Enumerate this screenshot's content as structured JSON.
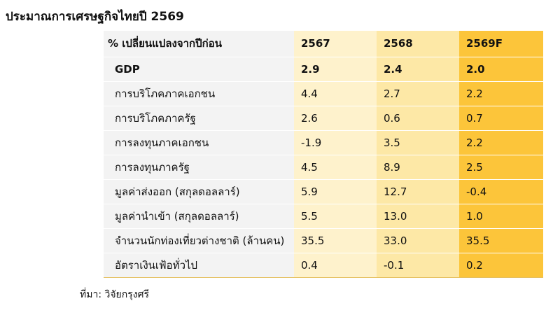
{
  "title": "ประมาณการเศรษฐกิจไทยปี 2569",
  "columns": [
    "% เปลี่ยนแปลงจากปีก่อน",
    "2567",
    "2568",
    "2569F"
  ],
  "rows": [
    {
      "label": "GDP",
      "values": [
        "2.9",
        "2.4",
        "2.0"
      ]
    },
    {
      "label": "การบริโภคภาคเอกชน",
      "values": [
        "4.4",
        "2.7",
        "2.2"
      ]
    },
    {
      "label": "การบริโภคภาครัฐ",
      "values": [
        "2.6",
        "0.6",
        "0.7"
      ]
    },
    {
      "label": "การลงทุนภาคเอกชน",
      "values": [
        "-1.9",
        "3.5",
        "2.2"
      ]
    },
    {
      "label": "การลงทุนภาครัฐ",
      "values": [
        "4.5",
        "8.9",
        "2.5"
      ]
    },
    {
      "label": "มูลค่าส่งออก (สกุลดอลลาร์)",
      "values": [
        "5.9",
        "12.7",
        "-0.4"
      ]
    },
    {
      "label": "มูลค่านำเข้า (สกุลดอลลาร์)",
      "values": [
        "5.5",
        "13.0",
        "1.0"
      ]
    },
    {
      "label": "จำนวนนักท่องเที่ยวต่างชาติ (ล้านคน)",
      "values": [
        "35.5",
        "33.0",
        "35.5"
      ]
    },
    {
      "label": "อัตราเงินเฟ้อทั่วไป",
      "values": [
        "0.4",
        "-0.1",
        "0.2"
      ]
    }
  ],
  "source": "ที่มา: วิจัยกรุงศรี",
  "colors": {
    "col_2567": "#fef2cc",
    "col_2568": "#fde8a6",
    "col_2569F": "#fcc53a",
    "label_bg": "#f3f3f3"
  }
}
